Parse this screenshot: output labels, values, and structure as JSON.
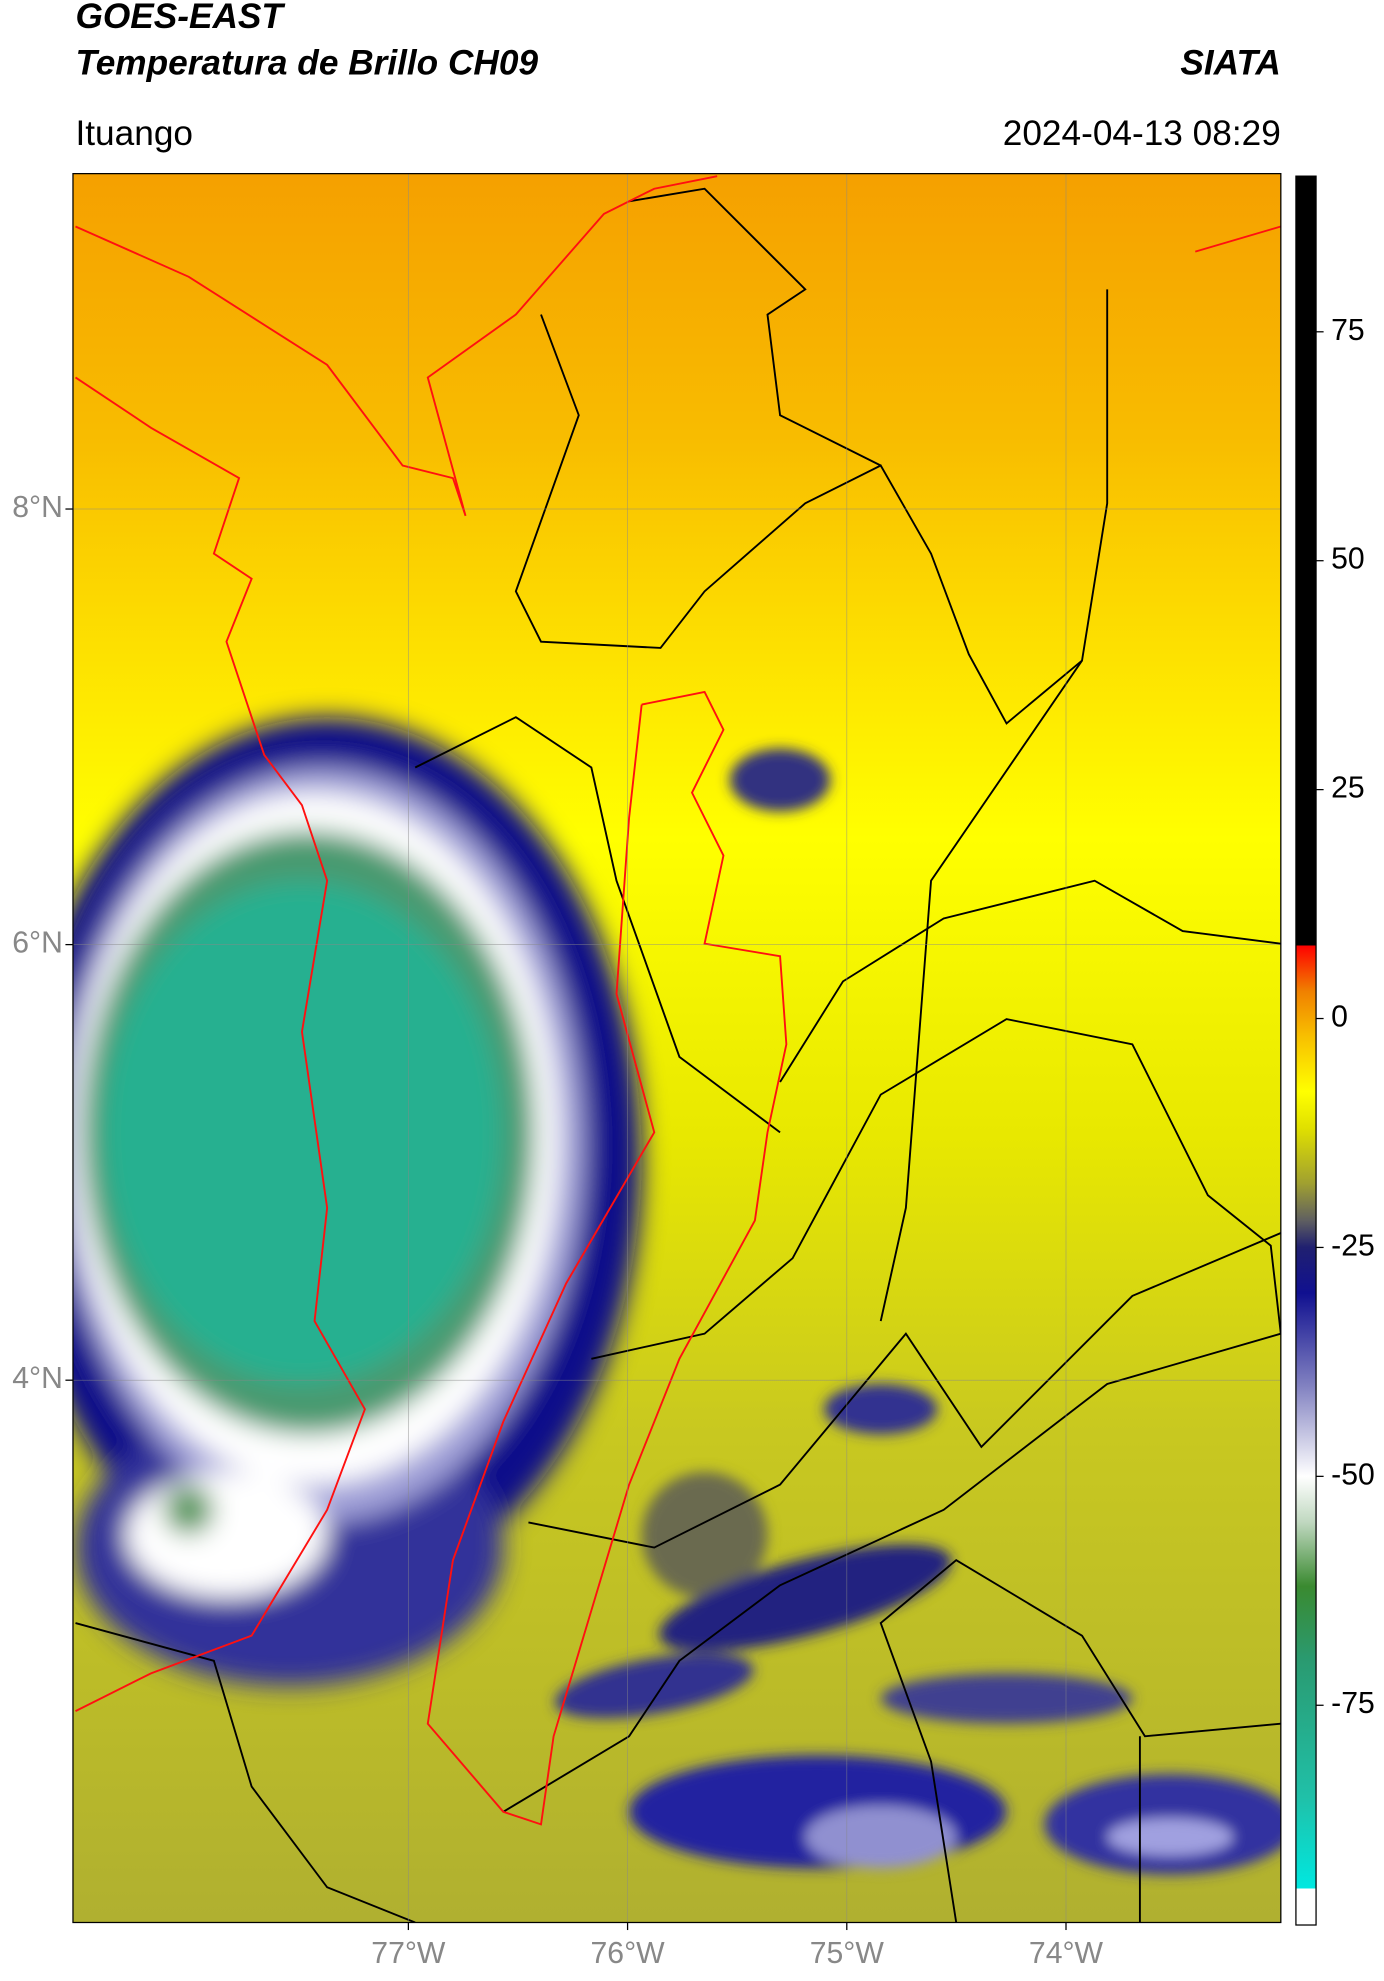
{
  "header": {
    "title": "GOES-EAST",
    "subtitle": "Temperatura de Brillo CH09",
    "source": "SIATA",
    "location": "Ituango",
    "timestamp": "2024-04-13 08:29"
  },
  "map": {
    "lonlim": [
      -78.53,
      -73.02
    ],
    "latlim": [
      1.51,
      9.54
    ],
    "lon_ticks": [
      {
        "value": -77,
        "label": "77°W"
      },
      {
        "value": -76,
        "label": "76°W"
      },
      {
        "value": -75,
        "label": "75°W"
      },
      {
        "value": -74,
        "label": "74°W"
      }
    ],
    "lat_ticks": [
      {
        "value": 8,
        "label": "8°N"
      },
      {
        "value": 6,
        "label": "6°N"
      },
      {
        "value": 4,
        "label": "4°N"
      }
    ]
  },
  "colorbar": {
    "lim": [
      -99,
      92
    ],
    "ticks": [
      -75,
      -50,
      -25,
      0,
      25,
      50,
      75
    ],
    "stops": [
      {
        "value": -99,
        "color": "#ffffff"
      },
      {
        "value": -95,
        "color": "#ffffff"
      },
      {
        "value": -95,
        "color": "#00e8e0"
      },
      {
        "value": -85,
        "color": "#20c0a8"
      },
      {
        "value": -70,
        "color": "#2a9a70"
      },
      {
        "value": -62,
        "color": "#3a8a30"
      },
      {
        "value": -55,
        "color": "#c0d8c0"
      },
      {
        "value": -50,
        "color": "#ffffff"
      },
      {
        "value": -40,
        "color": "#8080c0"
      },
      {
        "value": -30,
        "color": "#101090"
      },
      {
        "value": -25,
        "color": "#202070"
      },
      {
        "value": -22,
        "color": "#606060"
      },
      {
        "value": -18,
        "color": "#a0a030"
      },
      {
        "value": -12,
        "color": "#e0e000"
      },
      {
        "value": -8,
        "color": "#ffff00"
      },
      {
        "value": -2,
        "color": "#f8c000"
      },
      {
        "value": 3,
        "color": "#f08000"
      },
      {
        "value": 8,
        "color": "#ff0000"
      },
      {
        "value": 8,
        "color": "#000000"
      },
      {
        "value": 92,
        "color": "#000000"
      }
    ]
  }
}
